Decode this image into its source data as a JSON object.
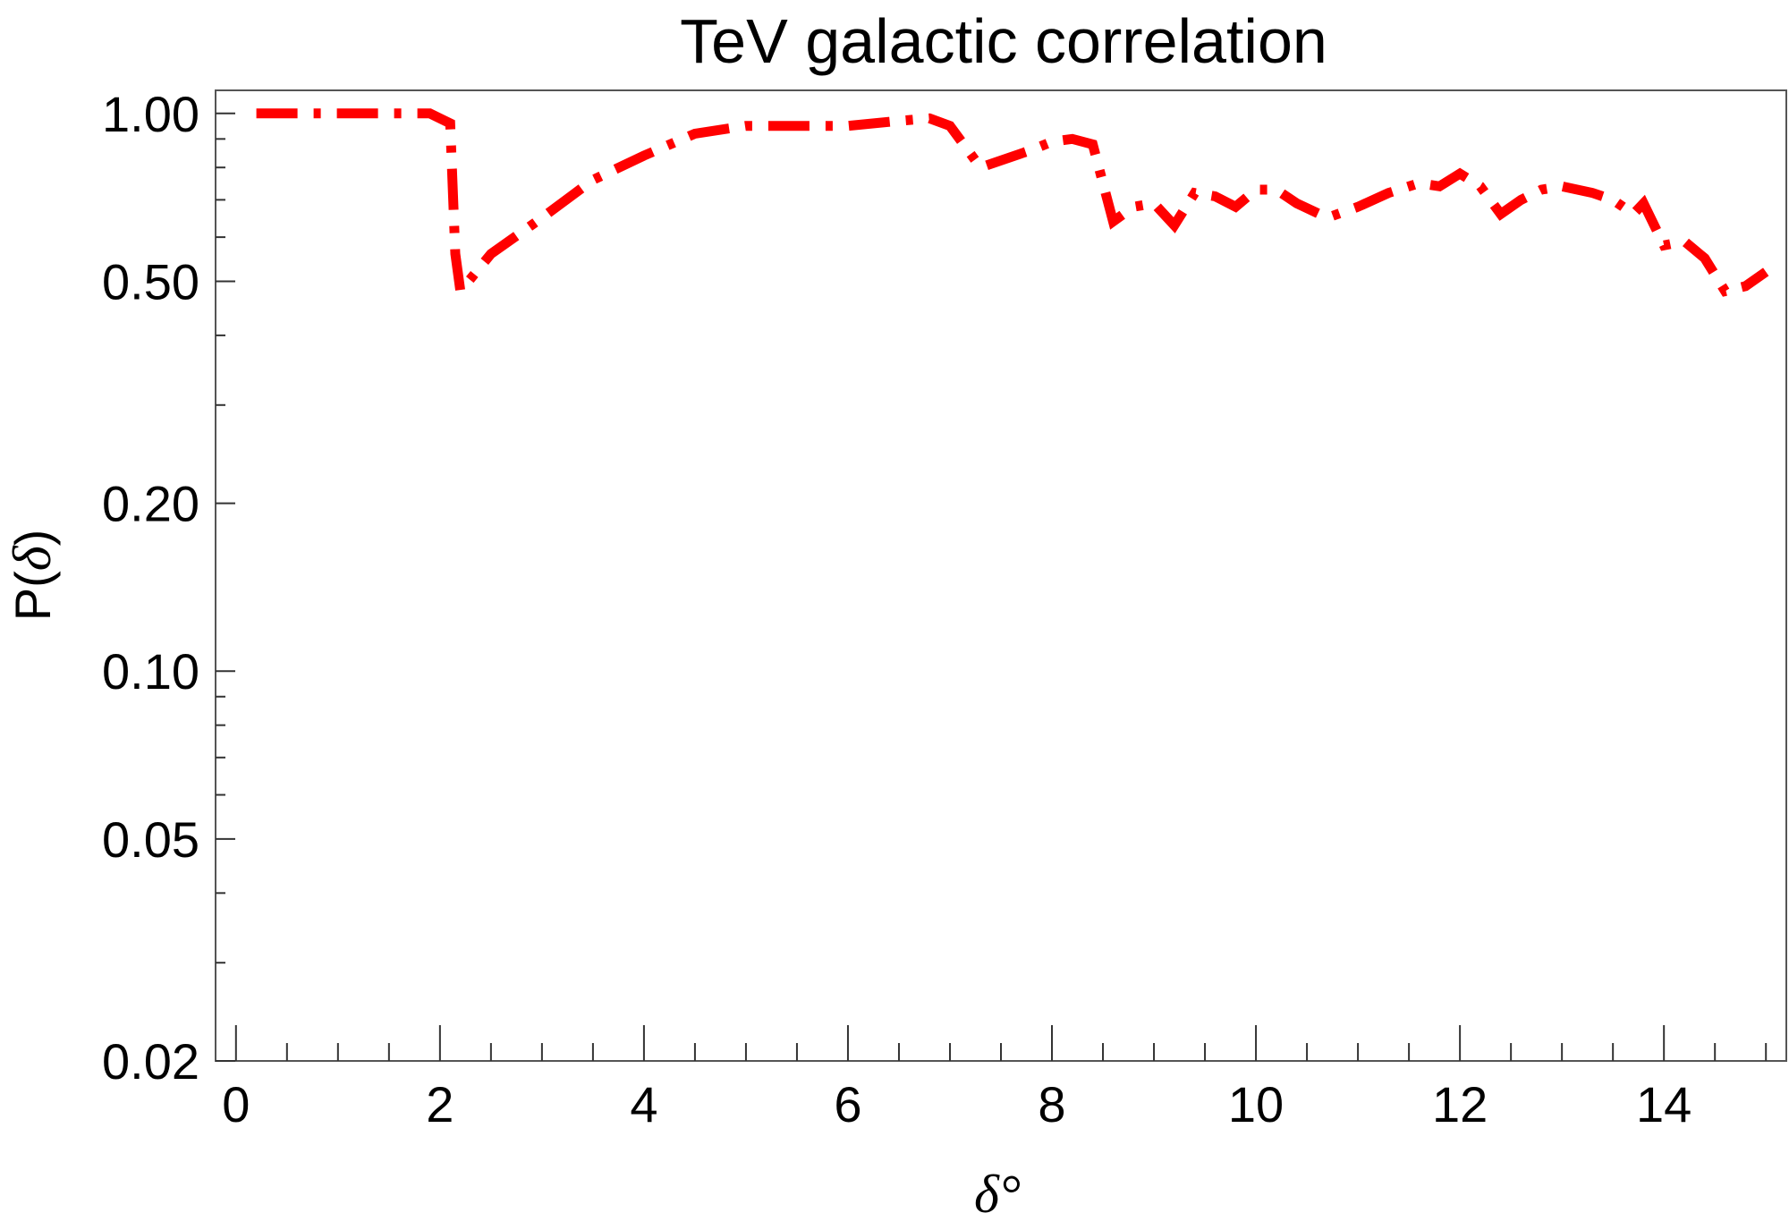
{
  "chart_data": {
    "type": "line",
    "title": "TeV galactic correlation",
    "xlabel": "δ°",
    "ylabel_prefix": "P(",
    "ylabel_symbol": "δ",
    "ylabel_suffix": ")",
    "xlim": [
      -0.2,
      15.2
    ],
    "ylim": [
      0.02,
      1.1
    ],
    "yscale": "log",
    "x_ticks": [
      0,
      2,
      4,
      6,
      8,
      10,
      12,
      14
    ],
    "x_tick_labels": [
      "0",
      "2",
      "4",
      "6",
      "8",
      "10",
      "12",
      "14"
    ],
    "y_ticks": [
      1.0,
      0.5,
      0.2,
      0.1,
      0.05,
      0.02
    ],
    "y_tick_labels": [
      "1.00",
      "0.50",
      "0.20",
      "0.10",
      "0.05",
      "0.02"
    ],
    "series": [
      {
        "name": "TeV galactic correlation",
        "color": "#ff0000",
        "line_style": "dash-dot",
        "x": [
          0.2,
          1.0,
          1.9,
          2.1,
          2.15,
          2.2,
          2.5,
          3.0,
          3.5,
          4.0,
          4.5,
          5.0,
          5.5,
          6.0,
          6.5,
          6.8,
          7.0,
          7.3,
          7.8,
          8.0,
          8.2,
          8.4,
          8.6,
          8.8,
          9.0,
          9.2,
          9.4,
          9.6,
          9.8,
          10.0,
          10.2,
          10.4,
          10.7,
          11.0,
          11.3,
          11.6,
          11.8,
          12.0,
          12.2,
          12.4,
          12.6,
          12.8,
          13.0,
          13.3,
          13.5,
          13.7,
          13.8,
          14.0,
          14.2,
          14.4,
          14.6,
          14.8,
          15.0
        ],
        "y": [
          1.0,
          1.0,
          1.0,
          0.96,
          0.56,
          0.48,
          0.56,
          0.65,
          0.76,
          0.84,
          0.92,
          0.95,
          0.95,
          0.95,
          0.97,
          0.98,
          0.95,
          0.8,
          0.86,
          0.89,
          0.9,
          0.88,
          0.64,
          0.68,
          0.69,
          0.63,
          0.72,
          0.71,
          0.68,
          0.73,
          0.73,
          0.69,
          0.65,
          0.68,
          0.72,
          0.75,
          0.74,
          0.78,
          0.74,
          0.66,
          0.7,
          0.73,
          0.74,
          0.72,
          0.7,
          0.66,
          0.69,
          0.58,
          0.59,
          0.55,
          0.48,
          0.49,
          0.52
        ]
      }
    ]
  }
}
